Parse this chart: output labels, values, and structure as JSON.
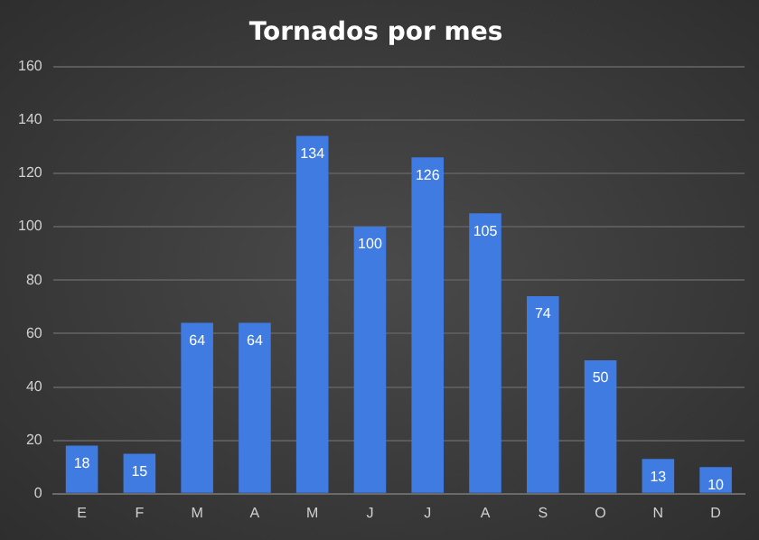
{
  "chart_data": {
    "type": "bar",
    "title": "Tornados por mes",
    "categories": [
      "E",
      "F",
      "M",
      "A",
      "M",
      "J",
      "J",
      "A",
      "S",
      "O",
      "N",
      "D"
    ],
    "values": [
      18,
      15,
      64,
      64,
      134,
      100,
      126,
      105,
      74,
      50,
      13,
      10
    ],
    "color": "#3f7be0",
    "ylim": [
      0,
      160
    ],
    "yticks": [
      0,
      20,
      40,
      60,
      80,
      100,
      120,
      140,
      160
    ],
    "grid": "y",
    "legend": false,
    "data_labels": true
  }
}
